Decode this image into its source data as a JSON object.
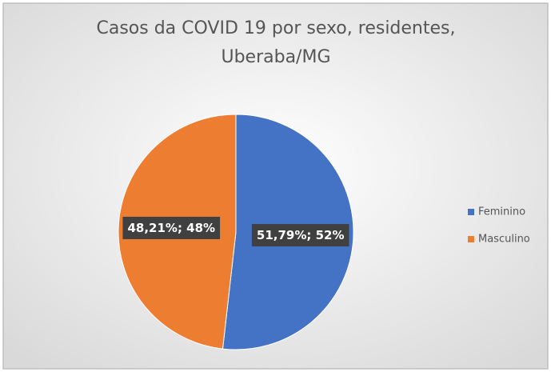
{
  "chart_data": {
    "type": "pie",
    "title": "Casos da COVID 19 por sexo, residentes, Uberaba/MG",
    "categories": [
      "Feminino",
      "Masculino"
    ],
    "values": [
      51.79,
      48.21
    ],
    "value_labels": [
      "51,79%; 52%",
      "48,21%; 48%"
    ],
    "colors": [
      "#4472c4",
      "#ed7d31"
    ],
    "legend": "right"
  }
}
